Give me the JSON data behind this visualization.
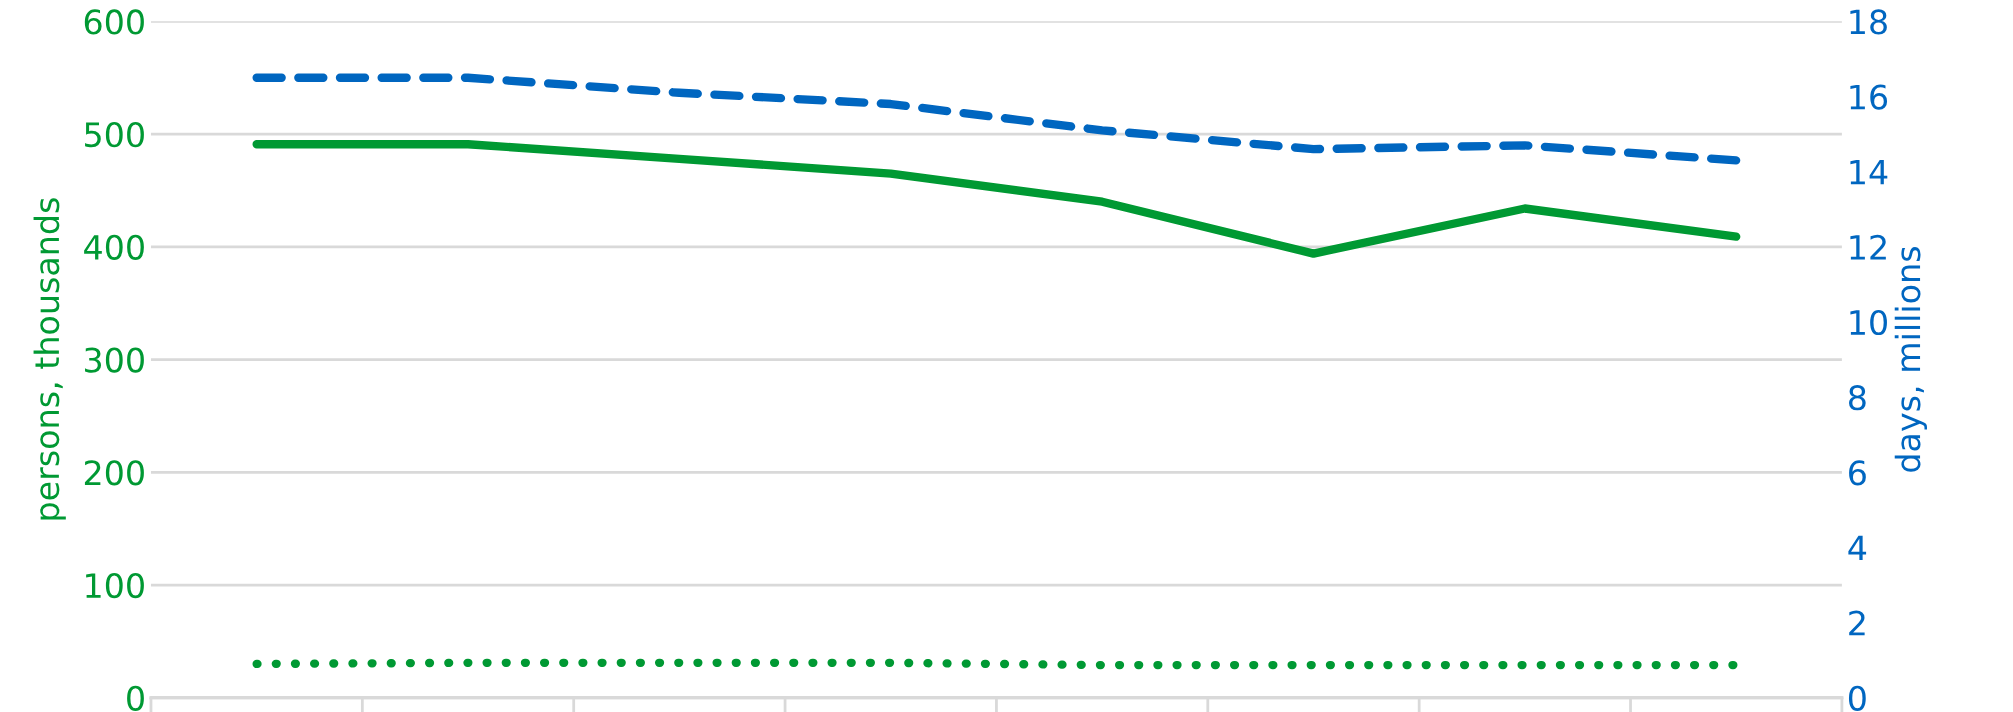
{
  "chart_data": {
    "type": "line",
    "ylabel": "persons, thousands",
    "y2label": "days, millions",
    "categories": [
      null,
      null,
      null,
      null,
      null,
      null,
      null,
      null
    ],
    "series": [
      {
        "color": "#009933",
        "line_style": "solid",
        "values": [
          491,
          491,
          478,
          465,
          440,
          394,
          434,
          409
        ]
      },
      {
        "color": "#0066c0",
        "line_style": "dashed",
        "axis": "y2",
        "values": [
          16.5,
          16.5,
          16.1,
          15.8,
          15.1,
          14.6,
          14.7,
          14.3
        ]
      },
      {
        "color": "#009933",
        "line_style": "dotted",
        "values": [
          30,
          31,
          31,
          31,
          29,
          29,
          29,
          29
        ]
      }
    ],
    "ylim": [
      0,
      600
    ],
    "yticks": [
      0,
      100,
      200,
      300,
      400,
      500,
      600
    ],
    "y2lim": [
      0,
      18
    ],
    "y2ticks": [
      0,
      2,
      4,
      6,
      8,
      10,
      12,
      14,
      16,
      18
    ],
    "grid": "y",
    "marker": "none"
  }
}
